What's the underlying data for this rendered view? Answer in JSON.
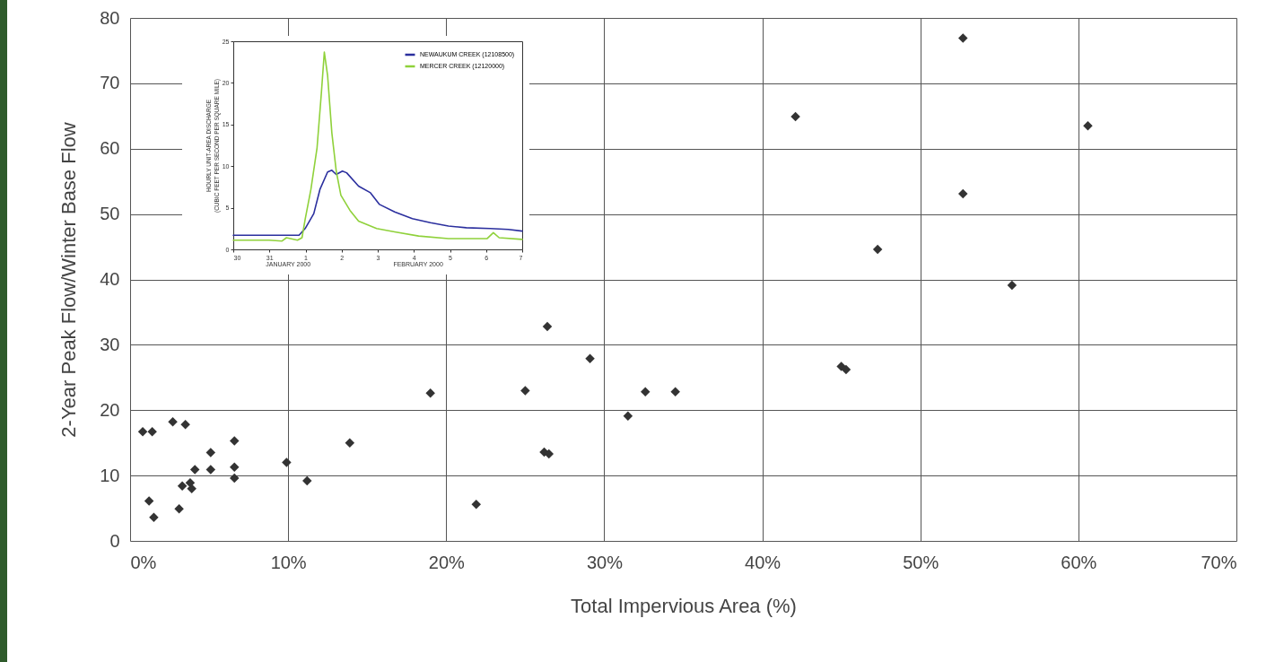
{
  "chart_data": [
    {
      "type": "scatter",
      "xlabel": "Total Impervious Area (%)",
      "ylabel": "2-Year Peak Flow/Winter Base Flow",
      "x": [
        0.8,
        1.4,
        2.7,
        3.5,
        6.6,
        5.1,
        4.1,
        5.1,
        6.6,
        6.6,
        9.9,
        11.2,
        3.3,
        3.8,
        3.9,
        1.2,
        1.5,
        3.1,
        13.9,
        19.0,
        26.4,
        29.1,
        25.0,
        32.6,
        34.5,
        31.5,
        26.2,
        26.5,
        21.9,
        52.7,
        42.1,
        60.6,
        52.7,
        47.3,
        55.8,
        45.0,
        45.3
      ],
      "series": [
        {
          "color": "#333333",
          "values": [
            16.7,
            16.7,
            18.2,
            17.8,
            15.3,
            13.5,
            10.9,
            10.9,
            11.3,
            9.6,
            12.0,
            9.2,
            8.4,
            8.9,
            8.0,
            6.1,
            3.6,
            4.9,
            15.0,
            22.6,
            32.8,
            27.9,
            23.0,
            22.8,
            22.8,
            19.1,
            13.6,
            13.3,
            5.6,
            76.9,
            64.9,
            63.5,
            53.1,
            44.6,
            39.1,
            26.7,
            26.2
          ]
        }
      ],
      "xlim": [
        0,
        70
      ],
      "ylim": [
        0,
        80
      ],
      "xticks": [
        {
          "value": 0,
          "label": "0%"
        },
        {
          "value": 10,
          "label": "10%"
        },
        {
          "value": 20,
          "label": "20%"
        },
        {
          "value": 30,
          "label": "30%"
        },
        {
          "value": 40,
          "label": "40%"
        },
        {
          "value": 50,
          "label": "50%"
        },
        {
          "value": 60,
          "label": "60%"
        },
        {
          "value": 70,
          "label": "70%"
        }
      ],
      "yticks": [
        0,
        10,
        20,
        30,
        40,
        50,
        60,
        70,
        80
      ],
      "grid": true,
      "marker": "diamond"
    },
    {
      "type": "line",
      "ylabel": "HOURLY UNIT-AREA DISCHARGE\n(CUBIC FEET PER SECOND PER SQUARE MILE)",
      "annotations": [
        "JANUARY 2000",
        "FEBRUARY 2000"
      ],
      "series": [
        {
          "name": "NEWAUKUM CREEK (12108500)",
          "color": "#2b2f9e",
          "x": [
            "2000-01-30T00:00",
            "2000-01-31T19:40",
            "2000-01-31T23:45",
            "2000-02-01T05:30",
            "2000-02-01T09:35",
            "2000-02-01T14:40",
            "2000-02-01T17:30",
            "2000-02-01T20:25",
            "2000-02-02T00:30",
            "2000-02-02T03:20",
            "2000-02-02T11:15",
            "2000-02-02T19:10",
            "2000-02-03T01:10",
            "2000-02-03T11:15",
            "2000-02-03T23:00",
            "2000-02-04T11:00",
            "2000-02-04T23:00",
            "2000-02-05T10:50",
            "2000-02-06T02:40",
            "2000-02-06T14:40",
            "2000-02-07T00:00"
          ],
          "values": [
            1.7,
            1.7,
            2.5,
            4.3,
            7.2,
            9.3,
            9.5,
            9.0,
            9.4,
            9.2,
            7.6,
            6.8,
            5.4,
            4.5,
            3.7,
            3.2,
            2.8,
            2.6,
            2.5,
            2.4,
            2.2
          ]
        },
        {
          "name": "MERCER CREEK (12120000)",
          "color": "#8fd13a",
          "x": [
            "2000-01-30T00:00",
            "2000-01-30T23:45",
            "2000-01-31T08:25",
            "2000-01-31T11:20",
            "2000-01-31T18:40",
            "2000-01-31T21:40",
            "2000-01-31T23:45",
            "2000-02-01T03:35",
            "2000-02-01T07:40",
            "2000-02-01T10:30",
            "2000-02-01T12:30",
            "2000-02-01T14:40",
            "2000-02-01T17:30",
            "2000-02-01T20:25",
            "2000-02-01T23:30",
            "2000-02-02T05:30",
            "2000-02-02T11:15",
            "2000-02-02T23:15",
            "2000-02-03T11:15",
            "2000-02-04T03:10",
            "2000-02-04T23:00",
            "2000-02-06T00:45",
            "2000-02-06T04:50",
            "2000-02-06T08:40",
            "2000-02-07T00:00"
          ],
          "values": [
            1.1,
            1.1,
            1.0,
            1.4,
            1.1,
            1.4,
            3.6,
            7.2,
            12.2,
            18.7,
            23.7,
            20.9,
            14.0,
            9.4,
            6.5,
            4.7,
            3.4,
            2.5,
            2.1,
            1.6,
            1.3,
            1.3,
            2.0,
            1.4,
            1.2
          ]
        }
      ],
      "xlim": [
        "2000-01-30T00:00",
        "2000-02-07T00:00"
      ],
      "ylim": [
        0,
        25
      ],
      "xticks": [
        {
          "value": "2000-01-30",
          "label": "30"
        },
        {
          "value": "2000-01-31",
          "label": "31"
        },
        {
          "value": "2000-02-01",
          "label": "1"
        },
        {
          "value": "2000-02-02",
          "label": "2"
        },
        {
          "value": "2000-02-03",
          "label": "3"
        },
        {
          "value": "2000-02-04",
          "label": "4"
        },
        {
          "value": "2000-02-05",
          "label": "5"
        },
        {
          "value": "2000-02-06",
          "label": "6"
        },
        {
          "value": "2000-02-07",
          "label": "7"
        }
      ],
      "yticks": [
        0,
        5,
        10,
        15,
        20,
        25
      ],
      "legend": "top right"
    }
  ]
}
